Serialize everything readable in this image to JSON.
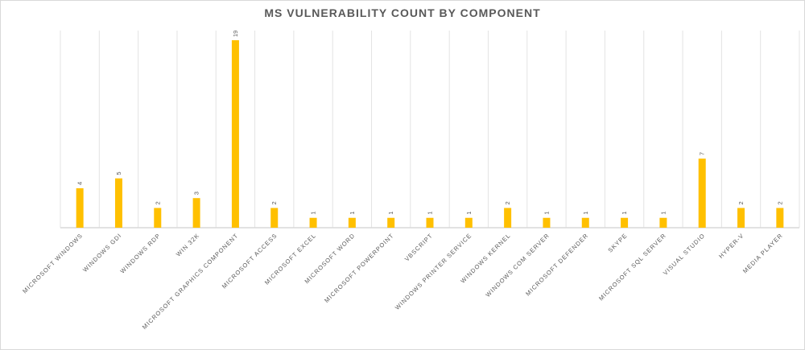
{
  "chart_data": {
    "type": "bar",
    "title": "MS VULNERABILITY COUNT BY COMPONENT",
    "xlabel": "",
    "ylabel": "",
    "ylim": [
      0,
      19
    ],
    "grid": "vertical category separators",
    "legend": "none",
    "bar_color": "#FFC000",
    "categories": [
      "MICROSOFT WINDOWS",
      "WINDOWS GDI",
      "WINDOWS RDP",
      "WIN 32K",
      "MICROSOFT GRAPHICS COMPONENT",
      "MICROSOFT ACCESS",
      "MICROSOFT EXCEL",
      "MICROSOFT WORD",
      "MICROSOFT POWERPOINT",
      "VBSCRIPT",
      "WINDOWS PRINTER SERVICE",
      "WINDOWS KERNEL",
      "WINDOWS COM SERVER",
      "MICROSOFT DEFENDER",
      "SKYPE",
      "MICROSOFT SQL SERVER",
      "VISUAL STUDIO",
      "HYPER-V",
      "MEDIA PLAYER"
    ],
    "values": [
      4,
      5,
      2,
      3,
      19,
      2,
      1,
      1,
      1,
      1,
      1,
      2,
      1,
      1,
      1,
      1,
      7,
      2,
      2
    ]
  }
}
